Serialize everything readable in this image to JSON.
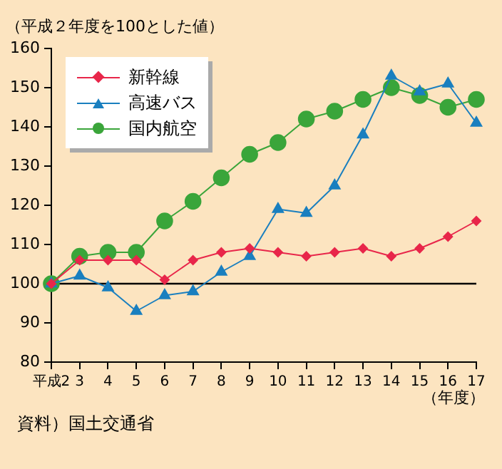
{
  "chart_data": {
    "type": "line",
    "ylabel": "（平成２年度を100とした値）",
    "xlabel": "（年度）",
    "annotations": [
      "資料）国土交通省"
    ],
    "categories": [
      "平成2",
      "3",
      "4",
      "5",
      "6",
      "7",
      "8",
      "9",
      "10",
      "11",
      "12",
      "13",
      "14",
      "15",
      "16",
      "17"
    ],
    "series": [
      {
        "name": "新幹線",
        "color": "#e8264a",
        "marker": "diamond",
        "values": [
          100,
          106,
          106,
          106,
          101,
          106,
          108,
          109,
          108,
          107,
          108,
          109,
          107,
          109,
          112,
          116
        ]
      },
      {
        "name": "高速バス",
        "color": "#1a7fbf",
        "marker": "triangle",
        "values": [
          100,
          102,
          99,
          93,
          97,
          98,
          103,
          107,
          119,
          118,
          125,
          138,
          153,
          149,
          151,
          141
        ]
      },
      {
        "name": "国内航空",
        "color": "#3aa53a",
        "marker": "circle",
        "values": [
          100,
          107,
          108,
          108,
          116,
          121,
          127,
          133,
          136,
          142,
          144,
          147,
          150,
          148,
          145,
          147
        ]
      }
    ],
    "ylim": [
      80,
      160
    ],
    "yticks": [
      80,
      90,
      100,
      110,
      120,
      130,
      140,
      150,
      160
    ],
    "ref_lines": [
      {
        "axis": "y",
        "value": 100,
        "color": "#000000"
      }
    ],
    "legend": "top left"
  }
}
